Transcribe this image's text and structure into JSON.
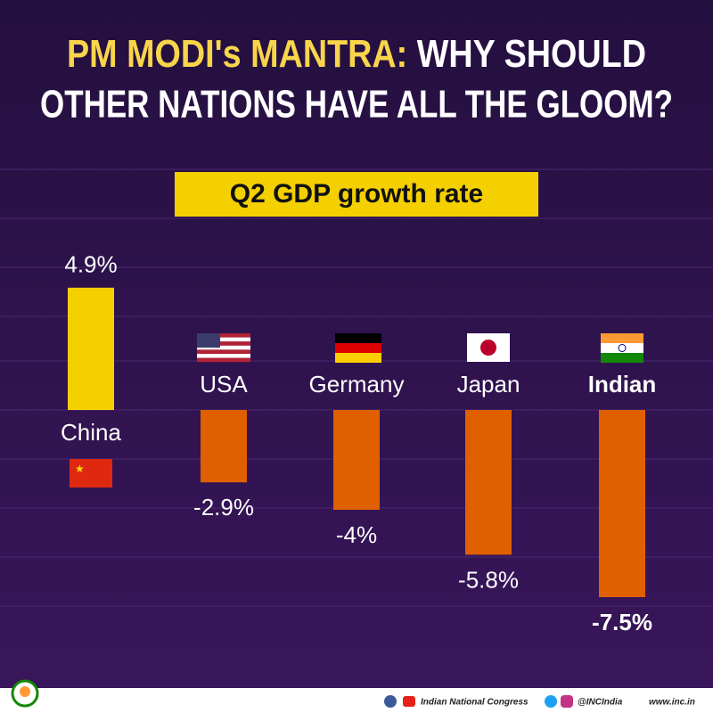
{
  "chart_data": {
    "type": "bar",
    "title": [
      "PM MODI's MANTRA:",
      "WHY SHOULD",
      "OTHER NATIONS HAVE ALL THE GLOOM?"
    ],
    "subtitle": "Q2 GDP growth rate",
    "categories": [
      "China",
      "USA",
      "Germany",
      "Japan",
      "Indian"
    ],
    "values": [
      4.9,
      -2.9,
      -4,
      -5.8,
      -7.5
    ],
    "value_labels": [
      "4.9%",
      "-2.9%",
      "-4%",
      "-5.8%",
      "-7.5%"
    ],
    "colors": [
      "#f5d000",
      "#e06000",
      "#e06000",
      "#e06000",
      "#e06000"
    ],
    "footer": {
      "org": "Indian National Congress",
      "handle": "@INCIndia",
      "site": "www.inc.in"
    }
  }
}
